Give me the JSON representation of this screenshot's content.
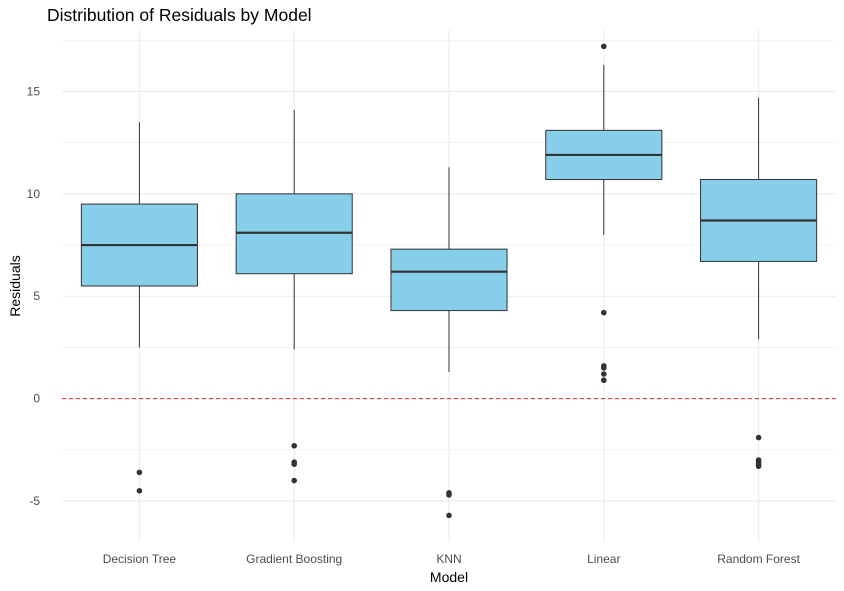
{
  "chart_data": {
    "type": "boxplot",
    "title": "Distribution of Residuals by Model",
    "xlabel": "Model",
    "ylabel": "Residuals",
    "ylim": [
      -7,
      18
    ],
    "yticks": [
      -5,
      0,
      5,
      10,
      15
    ],
    "grid": true,
    "categories": [
      "Decision Tree",
      "Gradient Boosting",
      "KNN",
      "Linear",
      "Random Forest"
    ],
    "boxes": [
      {
        "category": "Decision Tree",
        "whisker_low": 2.5,
        "q1": 5.5,
        "median": 7.5,
        "q3": 9.5,
        "whisker_high": 13.5,
        "outliers": [
          -3.6,
          -4.5
        ]
      },
      {
        "category": "Gradient Boosting",
        "whisker_low": 2.4,
        "q1": 6.1,
        "median": 8.1,
        "q3": 10.0,
        "whisker_high": 14.1,
        "outliers": [
          -2.3,
          -3.1,
          -3.2,
          -4.0
        ]
      },
      {
        "category": "KNN",
        "whisker_low": 1.3,
        "q1": 4.3,
        "median": 6.2,
        "q3": 7.3,
        "whisker_high": 11.3,
        "outliers": [
          -4.6,
          -4.7,
          -5.7
        ]
      },
      {
        "category": "Linear",
        "whisker_low": 8.0,
        "q1": 10.7,
        "median": 11.9,
        "q3": 13.1,
        "whisker_high": 16.3,
        "outliers": [
          17.2,
          4.2,
          1.6,
          1.5,
          1.2,
          0.9
        ]
      },
      {
        "category": "Random Forest",
        "whisker_low": 2.9,
        "q1": 6.7,
        "median": 8.7,
        "q3": 10.7,
        "whisker_high": 14.7,
        "outliers": [
          -1.9,
          -3.0,
          -3.1,
          -3.2,
          -3.3
        ]
      }
    ],
    "reference_line": {
      "y": 0,
      "style": "dashed",
      "color": "#d62728"
    },
    "box_fill": "#87ceeb",
    "box_stroke": "#333333",
    "grid_color": "#ebebeb"
  }
}
